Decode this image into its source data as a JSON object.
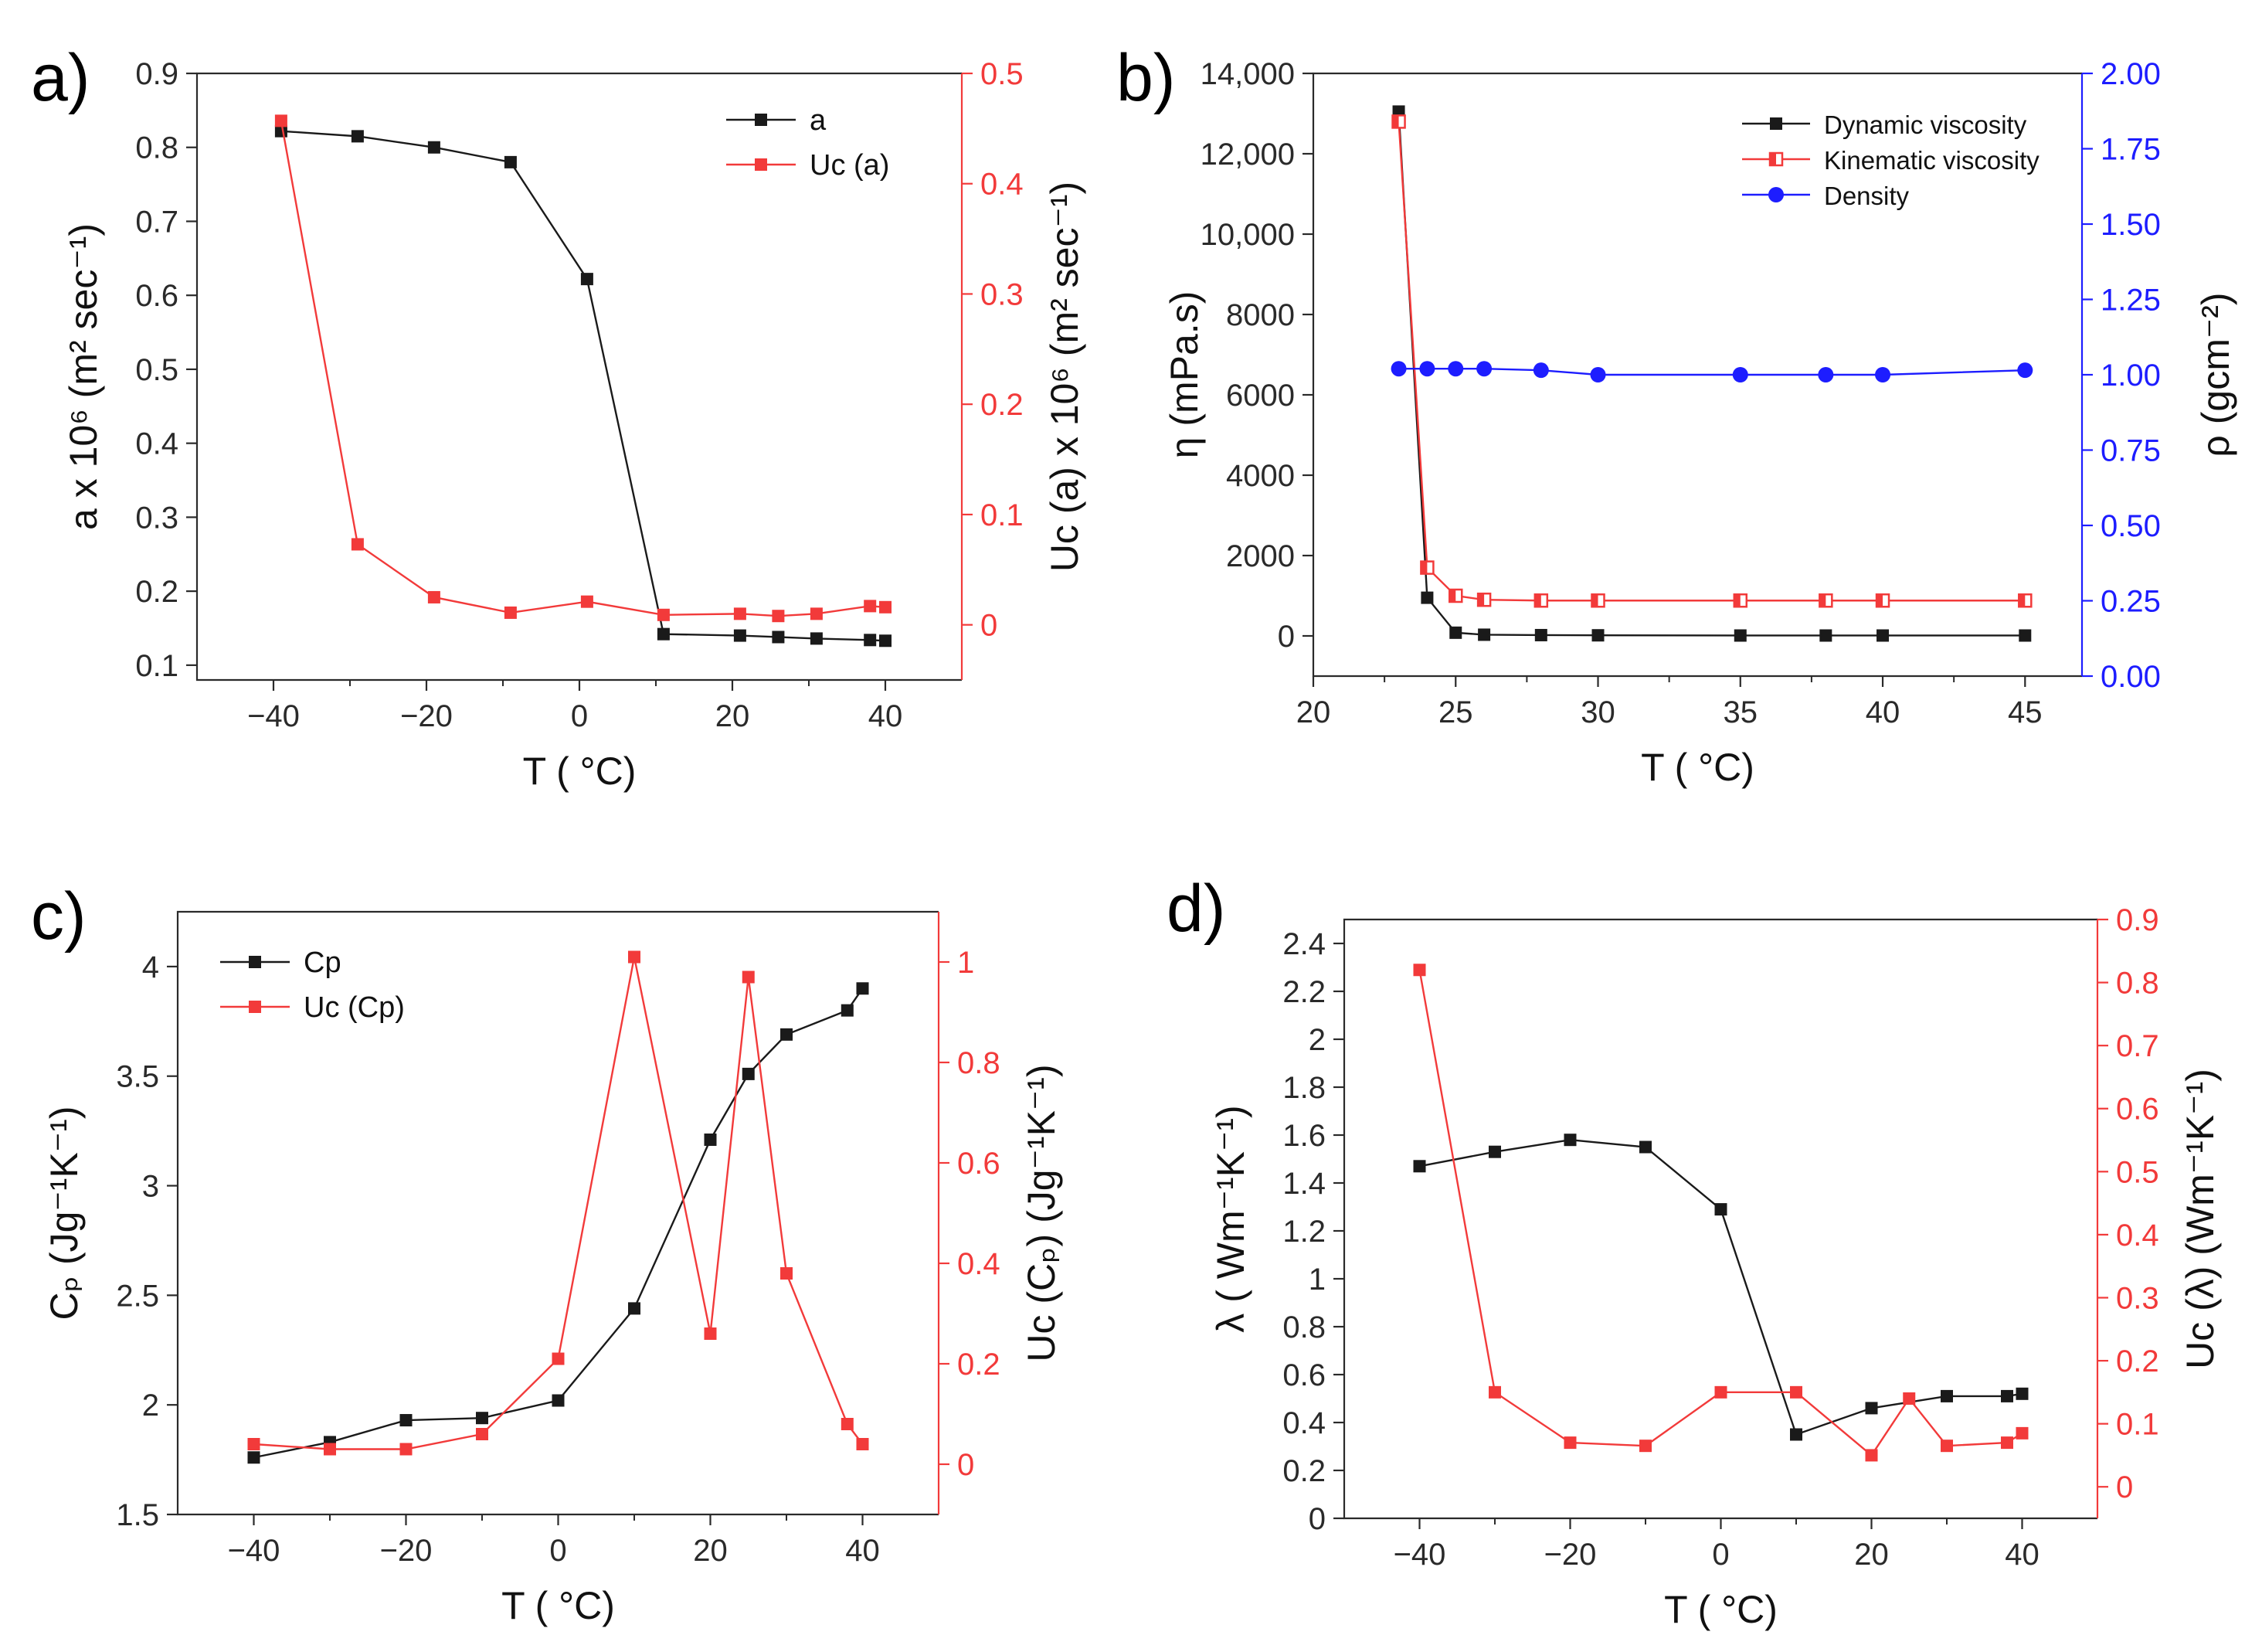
{
  "colors": {
    "black": "#1a1a1a",
    "red": "#f23a3a",
    "blue": "#1d1dff",
    "axis": "#2a2a2a"
  },
  "chart_data": [
    {
      "panel": "a)",
      "type": "line",
      "xlabel": "T ( °C)",
      "ylabel_left": "a x 10⁶ (m² sec⁻¹)",
      "ylabel_right": "Uᴄ (a) x 10⁶ (m² sec⁻¹)",
      "xlim": [
        -50,
        50
      ],
      "ylim_left": [
        0.08,
        0.9
      ],
      "ylim_right": [
        -0.05,
        0.5
      ],
      "xticks": [
        -40,
        -20,
        0,
        20,
        40
      ],
      "yticks_left": [
        0.1,
        0.2,
        0.3,
        0.4,
        0.5,
        0.6,
        0.7,
        0.8,
        0.9
      ],
      "yticks_right": [
        0.0,
        0.1,
        0.2,
        0.3,
        0.4,
        0.5
      ],
      "legend_position": "top-right",
      "series": [
        {
          "name": "a",
          "axis": "left",
          "color": "black",
          "marker": "square",
          "x": [
            -39,
            -29,
            -19,
            -9,
            1,
            11,
            21,
            26,
            31,
            38,
            40
          ],
          "y": [
            0.822,
            0.815,
            0.8,
            0.78,
            0.622,
            0.142,
            0.14,
            0.138,
            0.136,
            0.134,
            0.133
          ]
        },
        {
          "name": "Uc (a)",
          "axis": "right",
          "color": "red",
          "marker": "square",
          "x": [
            -39,
            -29,
            -19,
            -9,
            1,
            11,
            21,
            26,
            31,
            38,
            40
          ],
          "y": [
            0.457,
            0.073,
            0.025,
            0.011,
            0.021,
            0.009,
            0.01,
            0.008,
            0.01,
            0.017,
            0.016
          ]
        }
      ]
    },
    {
      "panel": "b)",
      "type": "line",
      "xlabel": "T ( °C)",
      "ylabel_left": "η (mPa.s)",
      "ylabel_right": "ρ (gcm⁻²)",
      "xlim": [
        20,
        47
      ],
      "ylim_left": [
        -1000,
        14000
      ],
      "ylim_right": [
        0.0,
        2.0
      ],
      "xticks": [
        20,
        25,
        30,
        35,
        40,
        45
      ],
      "yticks_left": [
        0,
        2000,
        4000,
        6000,
        8000,
        10000,
        12000,
        14000
      ],
      "yticks_left_labels": [
        "0",
        "2000",
        "4000",
        "6000",
        "8000",
        "10,000",
        "12,000",
        "14,000"
      ],
      "yticks_right": [
        0.0,
        0.25,
        0.5,
        0.75,
        1.0,
        1.25,
        1.5,
        1.75,
        2.0
      ],
      "yticks_right_labels": [
        "0.00",
        "0.25",
        "0.50",
        "0.75",
        "1.00",
        "1.25",
        "1.50",
        "1.75",
        "2.00"
      ],
      "legend_position": "top-right",
      "series": [
        {
          "name": "Dynamic viscosity",
          "axis": "left",
          "color": "black",
          "marker": "square",
          "x": [
            23,
            24,
            25,
            26,
            28,
            30,
            35,
            38,
            40,
            45
          ],
          "y": [
            13050,
            950,
            80,
            30,
            20,
            15,
            10,
            10,
            10,
            10
          ]
        },
        {
          "name": "Kinematic viscosity",
          "axis": "left",
          "color": "red",
          "marker": "half-square",
          "x": [
            23,
            24,
            25,
            26,
            28,
            30,
            35,
            38,
            40,
            45
          ],
          "y": [
            12800,
            1700,
            1000,
            900,
            880,
            880,
            880,
            880,
            880,
            880
          ]
        },
        {
          "name": "Density",
          "axis": "right",
          "color": "blue",
          "marker": "circle",
          "x": [
            23,
            24,
            25,
            26,
            28,
            30,
            35,
            38,
            40,
            45
          ],
          "y": [
            1.02,
            1.02,
            1.02,
            1.02,
            1.015,
            1.0,
            1.0,
            1.0,
            1.0,
            1.015
          ]
        }
      ]
    },
    {
      "panel": "c)",
      "type": "line",
      "xlabel": "T ( °C)",
      "ylabel_left": "Cₚ (Jg⁻¹K⁻¹)",
      "ylabel_right": "Uᴄ (Cₚ) (Jg⁻¹K⁻¹)",
      "xlim": [
        -50,
        50
      ],
      "ylim_left": [
        1.5,
        4.25
      ],
      "ylim_right": [
        -0.1,
        1.1
      ],
      "xticks": [
        -40,
        -20,
        0,
        20,
        40
      ],
      "yticks_left": [
        1.5,
        2.0,
        2.5,
        3.0,
        3.5,
        4.0
      ],
      "yticks_right": [
        0.0,
        0.2,
        0.4,
        0.6,
        0.8,
        1.0
      ],
      "legend_position": "top-left",
      "series": [
        {
          "name": "Cp",
          "axis": "left",
          "color": "black",
          "marker": "square",
          "x": [
            -40,
            -30,
            -20,
            -10,
            0,
            10,
            20,
            25,
            30,
            38,
            40
          ],
          "y": [
            1.76,
            1.83,
            1.93,
            1.94,
            2.02,
            2.44,
            3.21,
            3.51,
            3.69,
            3.8,
            3.9
          ]
        },
        {
          "name": "Uc (Cp)",
          "axis": "right",
          "color": "red",
          "marker": "square",
          "x": [
            -40,
            -30,
            -20,
            -10,
            0,
            10,
            20,
            25,
            30,
            38,
            40
          ],
          "y": [
            0.04,
            0.03,
            0.03,
            0.06,
            0.21,
            1.01,
            0.26,
            0.97,
            0.38,
            0.08,
            0.04
          ]
        }
      ]
    },
    {
      "panel": "d)",
      "type": "line",
      "xlabel": "T ( °C)",
      "ylabel_left": "λ ( Wm⁻¹K⁻¹)",
      "ylabel_right": "Uᴄ (λ) (Wm⁻¹K⁻¹)",
      "xlim": [
        -50,
        50
      ],
      "ylim_left": [
        0.0,
        2.5
      ],
      "ylim_right": [
        -0.05,
        0.9
      ],
      "xticks": [
        -40,
        -20,
        0,
        20,
        40
      ],
      "yticks_left": [
        0.0,
        0.2,
        0.4,
        0.6,
        0.8,
        1.0,
        1.2,
        1.4,
        1.6,
        1.8,
        2.0,
        2.2,
        2.4
      ],
      "yticks_right": [
        0.0,
        0.1,
        0.2,
        0.3,
        0.4,
        0.5,
        0.6,
        0.7,
        0.8,
        0.9
      ],
      "legend_position": "none",
      "series": [
        {
          "name": "λ",
          "axis": "left",
          "color": "black",
          "marker": "square",
          "x": [
            -40,
            -30,
            -20,
            -10,
            0,
            10,
            20,
            30,
            38,
            40
          ],
          "y": [
            1.47,
            1.53,
            1.58,
            1.55,
            1.29,
            0.35,
            0.46,
            0.51,
            0.51,
            0.52
          ]
        },
        {
          "name": "Uc (λ)",
          "axis": "right",
          "color": "red",
          "marker": "square",
          "x": [
            -40,
            -30,
            -20,
            -10,
            0,
            10,
            20,
            25,
            30,
            38,
            40
          ],
          "y": [
            0.82,
            0.15,
            0.07,
            0.065,
            0.15,
            0.15,
            0.05,
            0.14,
            0.065,
            0.07,
            0.085
          ]
        }
      ]
    }
  ]
}
